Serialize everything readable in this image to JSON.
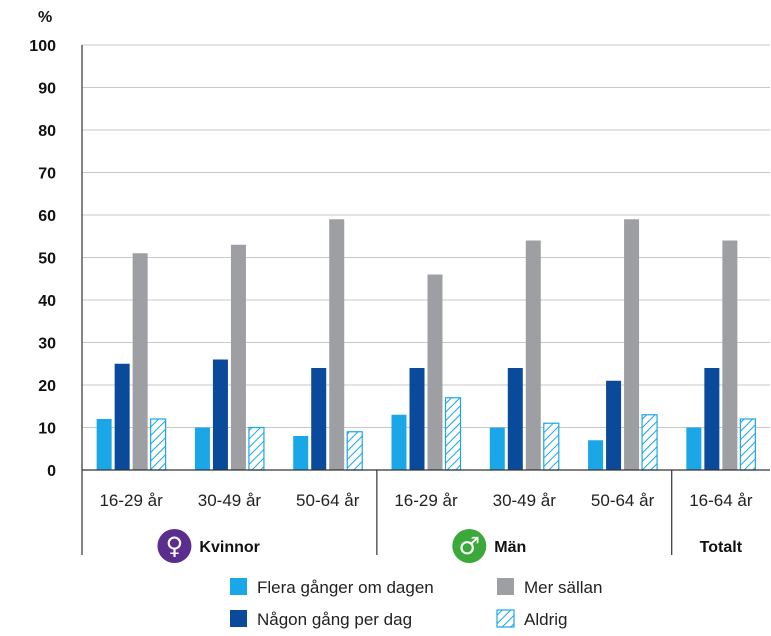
{
  "chart_data": {
    "type": "bar",
    "ylabel": "%",
    "ylim": [
      0,
      100
    ],
    "yticks": [
      "0",
      "10",
      "20",
      "30",
      "40",
      "50",
      "60",
      "70",
      "80",
      "90",
      "100"
    ],
    "grid": true,
    "categories": [
      "16-29 år",
      "30-49 år",
      "50-64 år",
      "16-29 år",
      "30-49 år",
      "50-64 år",
      "16-64 år"
    ],
    "groups": [
      {
        "label": "Kvinnor",
        "symbol": "♀",
        "color": "#5b2d8e",
        "span": 3
      },
      {
        "label": "Män",
        "symbol": "♂",
        "color": "#3aa93a",
        "span": 3
      },
      {
        "label": "Totalt",
        "span": 1
      }
    ],
    "series": [
      {
        "name": "Flera gånger om dagen",
        "color": "#1aa7e8",
        "pattern": "solid",
        "values": [
          12,
          10,
          8,
          13,
          10,
          7,
          10
        ]
      },
      {
        "name": "Någon gång per dag",
        "color": "#0a4a9a",
        "pattern": "solid",
        "values": [
          25,
          26,
          24,
          24,
          24,
          21,
          24
        ]
      },
      {
        "name": "Mer sällan",
        "color": "#9d9fa3",
        "pattern": "solid",
        "values": [
          51,
          53,
          59,
          46,
          54,
          59,
          54
        ]
      },
      {
        "name": "Aldrig",
        "color": "#1aa7e8",
        "pattern": "hatched",
        "values": [
          12,
          10,
          9,
          17,
          11,
          13,
          12
        ]
      }
    ],
    "legend_position": "bottom"
  }
}
